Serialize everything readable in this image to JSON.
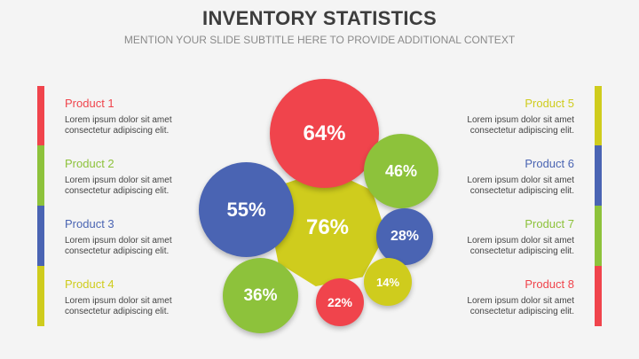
{
  "header": {
    "title": "INVENTORY STATISTICS",
    "subtitle": "MENTION YOUR SLIDE SUBTITLE HERE TO PROVIDE ADDITIONAL CONTEXT"
  },
  "colors": {
    "red": "#f0444c",
    "green": "#8dc23b",
    "blue": "#4a64b3",
    "yellow": "#cfcc1d"
  },
  "products_left": [
    {
      "name": "Product 1",
      "desc": "Lorem ipsum dolor sit amet\nconsectetur adipiscing elit.",
      "color": "#f0444c"
    },
    {
      "name": "Product 2",
      "desc": "Lorem ipsum dolor sit amet\nconsectetur adipiscing elit.",
      "color": "#8dc23b"
    },
    {
      "name": "Product 3",
      "desc": "Lorem ipsum dolor sit amet\nconsectetur adipiscing elit.",
      "color": "#4a64b3"
    },
    {
      "name": "Product 4",
      "desc": "Lorem ipsum dolor sit amet\nconsectetur adipiscing elit.",
      "color": "#cfcc1d"
    }
  ],
  "products_right": [
    {
      "name": "Product 5",
      "desc": "Lorem ipsum dolor sit amet\nconsectetur adipiscing elit.",
      "color": "#cfcc1d"
    },
    {
      "name": "Product 6",
      "desc": "Lorem ipsum dolor sit amet\nconsectetur adipiscing elit.",
      "color": "#4a64b3"
    },
    {
      "name": "Product 7",
      "desc": "Lorem ipsum dolor sit amet\nconsectetur adipiscing elit.",
      "color": "#8dc23b"
    },
    {
      "name": "Product 8",
      "desc": "Lorem ipsum dolor sit amet\nconsectetur adipiscing elit.",
      "color": "#f0444c"
    }
  ],
  "bubbles": [
    {
      "label": "64%",
      "color": "#f0444c"
    },
    {
      "label": "46%",
      "color": "#8dc23b"
    },
    {
      "label": "55%",
      "color": "#4a64b3"
    },
    {
      "label": "76%",
      "color": "#cfcc1d"
    },
    {
      "label": "28%",
      "color": "#4a64b3"
    },
    {
      "label": "36%",
      "color": "#8dc23b"
    },
    {
      "label": "14%",
      "color": "#cfcc1d"
    },
    {
      "label": "22%",
      "color": "#f0444c"
    }
  ]
}
